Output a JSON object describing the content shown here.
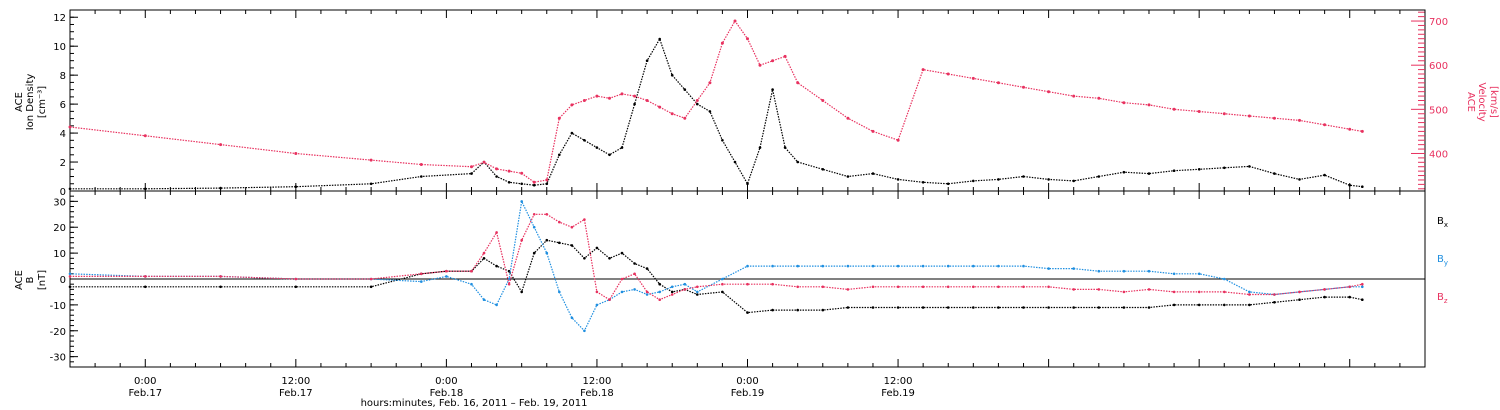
{
  "colors": {
    "density": "#000000",
    "velocity": "#e8315f",
    "bx": "#000000",
    "by": "#1f8fe0",
    "bz": "#e8315f"
  },
  "chart_data": [
    {
      "type": "scatter",
      "panel": "top",
      "ylabel_left": [
        "ACE",
        "Ion Density",
        "[cm⁻³]"
      ],
      "ylabel_right": [
        "ACE",
        "Velocity",
        "[km/s]"
      ],
      "ylim_left": [
        0,
        12.5
      ],
      "ylim_right": [
        315,
        725
      ],
      "yticks_left": [
        "0",
        "2",
        "4",
        "6",
        "8",
        "10",
        "12"
      ],
      "yticks_right": [
        "400",
        "500",
        "600",
        "700"
      ],
      "xlim": [
        -6,
        102
      ],
      "series": [
        {
          "key": "density",
          "x": [
            -6,
            0,
            6,
            12,
            18,
            22,
            26,
            27,
            28,
            29,
            30,
            31,
            32,
            33,
            34,
            35,
            36,
            37,
            38,
            39,
            40,
            41,
            42,
            43,
            44,
            45,
            46,
            47,
            48,
            49,
            50,
            51,
            52,
            54,
            56,
            58,
            60,
            62,
            64,
            66,
            68,
            70,
            72,
            74,
            76,
            78,
            80,
            82,
            84,
            86,
            88,
            90,
            92,
            94,
            96,
            97
          ],
          "y": [
            0.15,
            0.15,
            0.2,
            0.3,
            0.5,
            1.0,
            1.2,
            2.0,
            1.0,
            0.6,
            0.5,
            0.4,
            0.5,
            2.5,
            4.0,
            3.5,
            3.0,
            2.5,
            3.0,
            6.0,
            9.0,
            10.5,
            8.0,
            7.0,
            6.0,
            5.5,
            3.5,
            2.0,
            0.5,
            3.0,
            7.0,
            3.0,
            2.0,
            1.5,
            1.0,
            1.2,
            0.8,
            0.6,
            0.5,
            0.7,
            0.8,
            1.0,
            0.8,
            0.7,
            1.0,
            1.3,
            1.2,
            1.4,
            1.5,
            1.6,
            1.7,
            1.2,
            0.8,
            1.1,
            0.4,
            0.3
          ]
        },
        {
          "key": "velocity",
          "x": [
            -6,
            0,
            6,
            12,
            18,
            22,
            26,
            27,
            28,
            29,
            30,
            31,
            32,
            33,
            34,
            35,
            36,
            37,
            38,
            39,
            40,
            41,
            42,
            43,
            44,
            45,
            46,
            47,
            48,
            49,
            50,
            51,
            52,
            54,
            56,
            58,
            60,
            62,
            64,
            66,
            68,
            70,
            72,
            74,
            76,
            78,
            80,
            82,
            84,
            86,
            88,
            90,
            92,
            94,
            96,
            97
          ],
          "y": [
            460,
            440,
            420,
            400,
            385,
            375,
            370,
            380,
            365,
            360,
            355,
            335,
            340,
            480,
            510,
            520,
            530,
            525,
            535,
            530,
            520,
            505,
            490,
            480,
            520,
            560,
            650,
            700,
            660,
            600,
            610,
            620,
            560,
            520,
            480,
            450,
            430,
            590,
            580,
            570,
            560,
            550,
            540,
            530,
            525,
            515,
            510,
            500,
            495,
            490,
            485,
            480,
            475,
            465,
            455,
            450
          ]
        }
      ]
    },
    {
      "type": "scatter",
      "panel": "bottom",
      "ylabel_left": [
        "ACE",
        "B",
        "[nT]"
      ],
      "ylim": [
        -34,
        34
      ],
      "yticks": [
        "-30",
        "-20",
        "-10",
        "0",
        "10",
        "20",
        "30"
      ],
      "xlim": [
        -6,
        102
      ],
      "xticks": [
        {
          "x": 0,
          "time": "0:00",
          "date": "Feb.17"
        },
        {
          "x": 12,
          "time": "12:00",
          "date": "Feb.17"
        },
        {
          "x": 24,
          "time": "0:00",
          "date": "Feb.18"
        },
        {
          "x": 36,
          "time": "12:00",
          "date": "Feb.18"
        },
        {
          "x": 48,
          "time": "0:00",
          "date": "Feb.19"
        },
        {
          "x": 60,
          "time": "12:00",
          "date": "Feb.19"
        }
      ],
      "xlabel": "hours:minutes, Feb. 16, 2011 – Feb. 19, 2011",
      "series": [
        {
          "key": "bx",
          "name": "B",
          "sub": "x",
          "x": [
            -6,
            0,
            6,
            12,
            18,
            22,
            24,
            26,
            27,
            28,
            29,
            30,
            31,
            32,
            33,
            34,
            35,
            36,
            37,
            38,
            39,
            40,
            41,
            42,
            43,
            44,
            46,
            48,
            50,
            52,
            54,
            56,
            58,
            60,
            62,
            64,
            66,
            68,
            70,
            72,
            74,
            76,
            78,
            80,
            82,
            84,
            86,
            88,
            90,
            92,
            94,
            96,
            97
          ],
          "y": [
            -3,
            -3,
            -3,
            -3,
            -3,
            2,
            3,
            3,
            8,
            5,
            3,
            -5,
            10,
            15,
            14,
            13,
            8,
            12,
            8,
            10,
            6,
            4,
            -2,
            -5,
            -4,
            -6,
            -5,
            -13,
            -12,
            -12,
            -12,
            -11,
            -11,
            -11,
            -11,
            -11,
            -11,
            -11,
            -11,
            -11,
            -11,
            -11,
            -11,
            -11,
            -10,
            -10,
            -10,
            -10,
            -9,
            -8,
            -7,
            -7,
            -8
          ]
        },
        {
          "key": "by",
          "name": "B",
          "sub": "y",
          "x": [
            -6,
            0,
            6,
            12,
            18,
            22,
            24,
            26,
            27,
            28,
            29,
            30,
            31,
            32,
            33,
            34,
            35,
            36,
            37,
            38,
            39,
            40,
            41,
            42,
            43,
            44,
            46,
            48,
            50,
            52,
            54,
            56,
            58,
            60,
            62,
            64,
            66,
            68,
            70,
            72,
            74,
            76,
            78,
            80,
            82,
            84,
            86,
            88,
            90,
            92,
            94,
            96,
            97
          ],
          "y": [
            2,
            1,
            1,
            0,
            0,
            -1,
            1,
            -2,
            -8,
            -10,
            0,
            30,
            20,
            10,
            -5,
            -15,
            -20,
            -10,
            -8,
            -5,
            -4,
            -6,
            -5,
            -3,
            -2,
            -5,
            0,
            5,
            5,
            5,
            5,
            5,
            5,
            5,
            5,
            5,
            5,
            5,
            5,
            4,
            4,
            3,
            3,
            3,
            2,
            2,
            0,
            -5,
            -6,
            -5,
            -4,
            -3,
            -3
          ]
        },
        {
          "key": "bz",
          "name": "B",
          "sub": "z",
          "x": [
            -6,
            0,
            6,
            12,
            18,
            22,
            24,
            26,
            27,
            28,
            29,
            30,
            31,
            32,
            33,
            34,
            35,
            36,
            37,
            38,
            39,
            40,
            41,
            42,
            43,
            44,
            46,
            48,
            50,
            52,
            54,
            56,
            58,
            60,
            62,
            64,
            66,
            68,
            70,
            72,
            74,
            76,
            78,
            80,
            82,
            84,
            86,
            88,
            90,
            92,
            94,
            96,
            97
          ],
          "y": [
            1,
            1,
            1,
            0,
            0,
            2,
            3,
            3,
            10,
            18,
            -2,
            15,
            25,
            25,
            22,
            20,
            23,
            -5,
            -8,
            0,
            2,
            -5,
            -8,
            -6,
            -4,
            -3,
            -2,
            -2,
            -2,
            -3,
            -3,
            -4,
            -3,
            -3,
            -3,
            -3,
            -3,
            -3,
            -3,
            -3,
            -4,
            -4,
            -5,
            -4,
            -5,
            -5,
            -5,
            -6,
            -6,
            -5,
            -4,
            -3,
            -2
          ]
        }
      ]
    }
  ]
}
